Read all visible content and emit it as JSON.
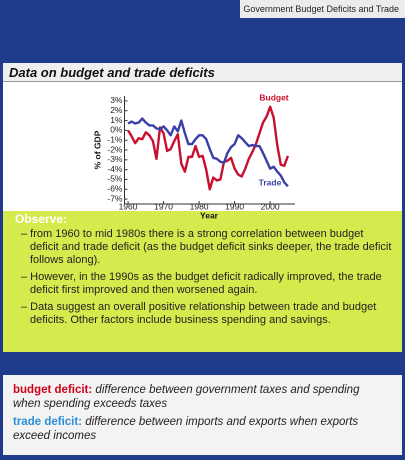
{
  "header": "Government Budget Deficits and Trade",
  "panel_title": "Data on budget and trade deficits",
  "chart_data": {
    "type": "line",
    "y_label": "% of GDP",
    "x_label": "Year",
    "x": [
      1960,
      1961,
      1962,
      1963,
      1964,
      1965,
      1966,
      1967,
      1968,
      1969,
      1970,
      1971,
      1972,
      1973,
      1974,
      1975,
      1976,
      1977,
      1978,
      1979,
      1980,
      1981,
      1982,
      1983,
      1984,
      1985,
      1986,
      1987,
      1988,
      1989,
      1990,
      1991,
      1992,
      1993,
      1994,
      1995,
      1996,
      1997,
      1998,
      1999,
      2000,
      2001,
      2002,
      2003,
      2004,
      2005
    ],
    "series": [
      {
        "name": "Budget",
        "color": "#c8102e",
        "values": [
          0.0,
          -0.6,
          -1.3,
          -0.8,
          -0.9,
          -0.2,
          -0.5,
          -1.1,
          -2.9,
          0.3,
          -0.3,
          -2.1,
          -1.9,
          -1.1,
          -0.4,
          -3.4,
          -4.2,
          -2.7,
          -2.7,
          -1.6,
          -2.7,
          -2.6,
          -4.0,
          -6.0,
          -4.8,
          -5.1,
          -5.0,
          -3.2,
          -3.1,
          -2.8,
          -3.9,
          -4.5,
          -4.7,
          -3.9,
          -2.9,
          -2.2,
          -1.4,
          -0.3,
          0.8,
          1.4,
          2.4,
          1.3,
          -1.5,
          -3.5,
          -3.6,
          -2.6
        ]
      },
      {
        "name": "Trade",
        "color": "#3a3fa8",
        "values": [
          0.7,
          0.9,
          0.7,
          0.8,
          1.2,
          0.8,
          0.5,
          0.5,
          0.2,
          0.1,
          0.4,
          0.0,
          -0.5,
          0.4,
          -0.1,
          1.0,
          -0.3,
          -1.4,
          -1.4,
          -0.9,
          -0.5,
          -0.5,
          -0.9,
          -1.9,
          -2.8,
          -2.9,
          -3.2,
          -3.3,
          -2.3,
          -1.7,
          -1.4,
          -0.5,
          -0.8,
          -1.2,
          -1.6,
          -1.5,
          -1.6,
          -1.6,
          -2.3,
          -3.1,
          -3.9,
          -3.7,
          -4.2,
          -4.6,
          -5.3,
          -5.7
        ]
      }
    ],
    "xlim": [
      1959,
      2007
    ],
    "xticks": [
      1960,
      1970,
      1980,
      1990,
      2000
    ],
    "ylim": [
      -7.5,
      3.5
    ],
    "yticks": [
      {
        "value": 3,
        "label": "3%"
      },
      {
        "value": 2,
        "label": "2%"
      },
      {
        "value": 1,
        "label": "1%"
      },
      {
        "value": 0,
        "label": "0%"
      },
      {
        "value": -1,
        "label": "-1%"
      },
      {
        "value": -2,
        "label": "-2%"
      },
      {
        "value": -3,
        "label": "-3%"
      },
      {
        "value": -4,
        "label": "-4%"
      },
      {
        "value": -5,
        "label": "-5%"
      },
      {
        "value": -6,
        "label": "-6%"
      },
      {
        "value": -7,
        "label": "-7%"
      }
    ]
  },
  "observe": {
    "heading": "Observe:",
    "bullets": [
      "– from 1960 to mid 1980s there is a strong correlation between budget deficit and trade deficit (as the budget deficit sinks deeper, the trade deficit follows along).",
      "– However, in the 1990s as the budget deficit radically improved, the trade deficit first improved and then worsened again.",
      "– Data suggest an overall positive relationship between trade and budget deficits. Other factors include business spending and savings."
    ]
  },
  "definitions": [
    {
      "term": "budget deficit:",
      "text": "difference between government taxes and spending when spending exceeds taxes"
    },
    {
      "term": "trade deficit:",
      "text": "difference between imports and exports when exports exceed incomes"
    }
  ]
}
